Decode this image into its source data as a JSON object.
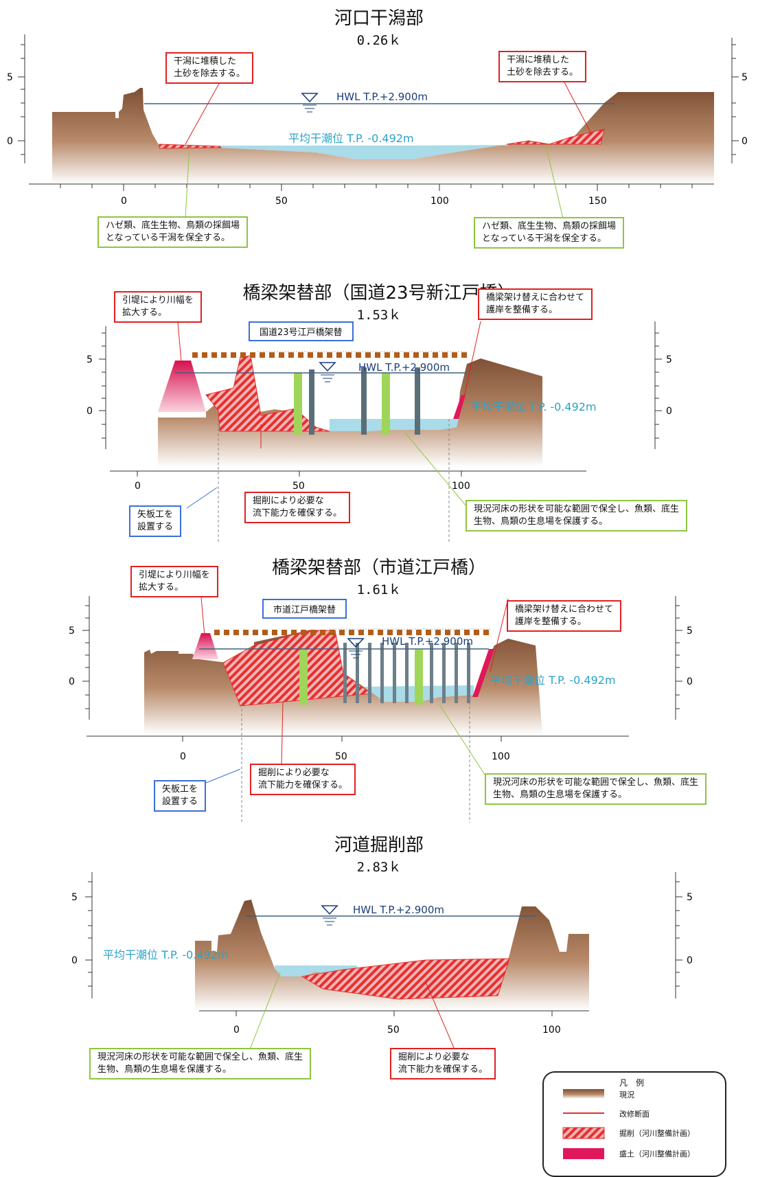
{
  "sections": [
    {
      "title": "河口干潟部",
      "km": "0.26ｋ",
      "hwl": "HWL  T.P.+2.900m",
      "mean_low": "平均干潮位  T.P. -0.492m",
      "y_ticks": [
        "5",
        "0"
      ],
      "x_ticks": [
        "0",
        "50",
        "100",
        "150"
      ],
      "notes": [
        {
          "text": [
            "干潟に堆積した",
            "土砂を除去する。"
          ],
          "type": "red"
        },
        {
          "text": [
            "干潟に堆積した",
            "土砂を除去する。"
          ],
          "type": "red"
        },
        {
          "text": [
            "ハゼ類、底生生物、鳥類の採餌場",
            "となっている干潟を保全する。"
          ],
          "type": "green"
        },
        {
          "text": [
            "ハゼ類、底生生物、鳥類の採餌場",
            "となっている干潟を保全する。"
          ],
          "type": "green"
        }
      ]
    },
    {
      "title": "橋梁架替部（国道23号新江戸橋）",
      "km": "1.53ｋ",
      "structure_label": "国道23号江戸橋架替",
      "hwl": "HWL  T.P.+2.900m",
      "mean_low": "平均干潮位  T.P. -0.492m",
      "y_ticks": [
        "5",
        "0"
      ],
      "x_ticks": [
        "0",
        "50",
        "100"
      ],
      "notes": [
        {
          "text": [
            "引堤により川幅を",
            "拡大する。"
          ],
          "type": "red"
        },
        {
          "text": [
            "橋梁架け替えに合わせて",
            "護岸を整備する。"
          ],
          "type": "red"
        },
        {
          "text": [
            "掘削により必要な",
            "流下能力を確保する。"
          ],
          "type": "red"
        },
        {
          "text": [
            "矢板工を",
            "設置する"
          ],
          "type": "blue"
        },
        {
          "text": [
            "現況河床の形状を可能な範囲で保全し、魚類、底生",
            "生物、鳥類の生息場を保護する。"
          ],
          "type": "green"
        }
      ]
    },
    {
      "title": "橋梁架替部（市道江戸橋）",
      "km": "1.61ｋ",
      "structure_label": "市道江戸橋架替",
      "hwl": "HWL  T.P.+2.900m",
      "mean_low": "平均干潮位  T.P. -0.492m",
      "y_ticks": [
        "5",
        "0"
      ],
      "x_ticks": [
        "0",
        "50",
        "100"
      ],
      "notes": [
        {
          "text": [
            "引堤により川幅を",
            "拡大する。"
          ],
          "type": "red"
        },
        {
          "text": [
            "橋梁架け替えに合わせて",
            "護岸を整備する。"
          ],
          "type": "red"
        },
        {
          "text": [
            "掘削により必要な",
            "流下能力を確保する。"
          ],
          "type": "red"
        },
        {
          "text": [
            "矢板工を",
            "設置する"
          ],
          "type": "blue"
        },
        {
          "text": [
            "現況河床の形状を可能な範囲で保全し、魚類、底生",
            "生物、鳥類の生息場を保護する。"
          ],
          "type": "green"
        }
      ]
    },
    {
      "title": "河道掘削部",
      "km": "2.83ｋ",
      "hwl": "HWL  T.P.+2.900m",
      "mean_low": "平均干潮位  T.P. -0.492m",
      "y_ticks": [
        "5",
        "0"
      ],
      "x_ticks": [
        "0",
        "50",
        "100"
      ],
      "notes": [
        {
          "text": [
            "現況河床の形状を可能な範囲で保全し、魚類、底生",
            "生物、鳥類の生息場を保護する。"
          ],
          "type": "green"
        },
        {
          "text": [
            "掘削により必要な",
            "流下能力を確保する。"
          ],
          "type": "red"
        }
      ]
    }
  ],
  "legend": {
    "title": "凡　例",
    "items": [
      "現況",
      "改修断面",
      "掘削（河川整備計画）",
      "盛土（河川整備計画）"
    ]
  },
  "colors": {
    "earth": "#8a5a3c",
    "water": "#a9dbe8",
    "cut": "#e53030",
    "fill": "#e0185a",
    "note_red": "#e02020",
    "note_green": "#8cc63f",
    "note_blue": "#3a6fd8",
    "pier": "#9fd65a"
  }
}
